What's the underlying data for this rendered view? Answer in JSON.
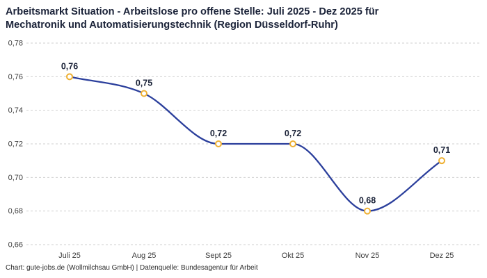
{
  "title": {
    "line1": "Arbeitsmarkt Situation - Arbeitslose pro offene Stelle: Juli 2025 - Dez 2025 für",
    "line2": "Mechatronik und Automatisierungstechnik (Region Düsseldorf-Ruhr)"
  },
  "footer": {
    "text": "Chart: gute-jobs.de (Wollmilchsau GmbH) | Datenquelle: Bundesagentur für Arbeit"
  },
  "chart_data": {
    "type": "line",
    "title": "Arbeitsmarkt Situation - Arbeitslose pro offene Stelle: Juli 2025 - Dez 2025 für Mechatronik und Automatisierungstechnik (Region Düsseldorf-Ruhr)",
    "categories": [
      "Juli 25",
      "Aug 25",
      "Sept 25",
      "Okt 25",
      "Nov 25",
      "Dez 25"
    ],
    "values": [
      0.76,
      0.75,
      0.72,
      0.72,
      0.68,
      0.71
    ],
    "point_labels": [
      "0,76",
      "0,75",
      "0,72",
      "0,72",
      "0,68",
      "0,71"
    ],
    "xlabel": "",
    "ylabel": "",
    "ylim": [
      0.66,
      0.78
    ],
    "ytick_step": 0.02,
    "ytick_labels": [
      "0,66",
      "0,68",
      "0,70",
      "0,72",
      "0,74",
      "0,76",
      "0,78"
    ],
    "grid": "horizontal-dashed",
    "legend": "none",
    "line_color": "#2b3f9c",
    "marker_fill": "#ffffff",
    "marker_stroke": "#eeb033",
    "grid_color": "#cfcfcf",
    "axis_text_color": "#3c3c3c",
    "value_label_color": "#1a2238"
  }
}
